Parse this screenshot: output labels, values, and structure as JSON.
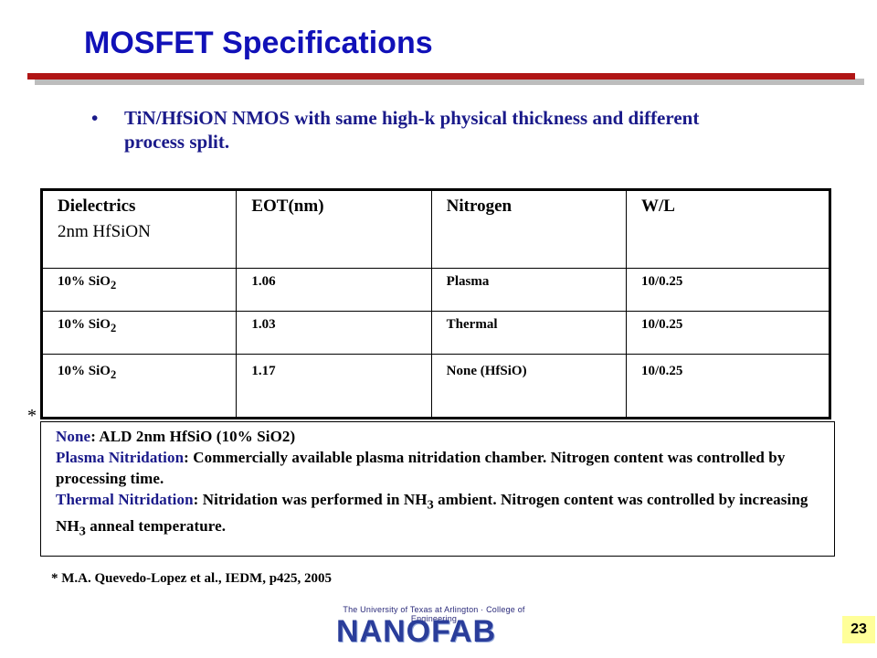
{
  "slide": {
    "title": "MOSFET Specifications",
    "bullet": "TiN/HfSiON NMOS with same high-k physical thickness and different process split.",
    "bullet_marker": "•",
    "page_number": "23"
  },
  "table": {
    "headers": {
      "dielectrics": "Dielectrics",
      "dielectrics_sub": "2nm HfSiON",
      "eot": "EOT(nm)",
      "nitrogen": "Nitrogen",
      "wl": "W/L"
    },
    "rows": [
      {
        "dielectric": "10% SiO",
        "dielectric_sub": "2",
        "eot": "1.06",
        "nitrogen": "Plasma",
        "wl": "10/0.25"
      },
      {
        "dielectric": "10% SiO",
        "dielectric_sub": "2",
        "eot": "1.03",
        "nitrogen": "Thermal",
        "wl": "10/0.25"
      },
      {
        "dielectric": "10% SiO",
        "dielectric_sub": "2",
        "eot": "1.17",
        "nitrogen": "None (HfSiO)",
        "wl": "10/0.25"
      }
    ]
  },
  "notes": {
    "star": "*",
    "none_key": "None",
    "none_text": ": ALD 2nm HfSiO (10% SiO2)",
    "plasma_key": "Plasma Nitridation",
    "plasma_text": ": Commercially available plasma nitridation chamber. Nitrogen content was controlled by processing time.",
    "thermal_key": "Thermal Nitridation",
    "thermal_text_a": ": Nitridation was performed in NH",
    "thermal_sub_a": "3",
    "thermal_text_b": " ambient. Nitrogen content was controlled by increasing NH",
    "thermal_sub_b": "3",
    "thermal_text_c": " anneal temperature."
  },
  "reference": "* M.A. Quevedo-Lopez et al., IEDM, p425, 2005",
  "logo": {
    "tagline": "The University of Texas at Arlington · College of Engineering",
    "word": "NANOFAB"
  },
  "colors": {
    "title": "#1111b8",
    "rule": "#b01515",
    "accent_text": "#1a1a8a",
    "page_badge": "#ffff99"
  }
}
